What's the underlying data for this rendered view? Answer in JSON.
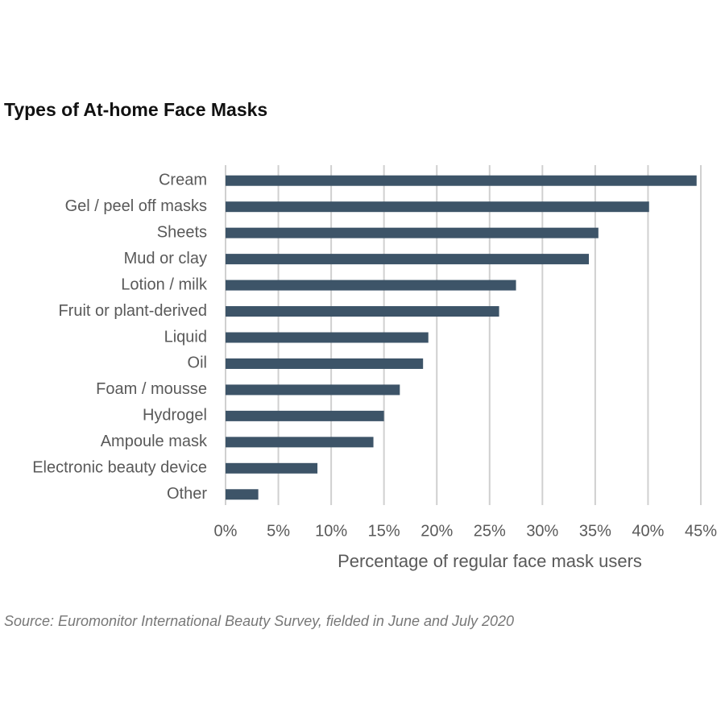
{
  "chart_data": {
    "type": "bar",
    "orientation": "horizontal",
    "title": "Types of At-home Face Masks",
    "xlabel": "Percentage of regular face mask users",
    "source": "Source: Euromonitor International Beauty Survey, fielded in June and July 2020",
    "categories": [
      "Cream",
      "Gel / peel off masks",
      "Sheets",
      "Mud or clay",
      "Lotion / milk",
      "Fruit or plant-derived",
      "Liquid",
      "Oil",
      "Foam / mousse",
      "Hydrogel",
      "Ampoule mask",
      "Electronic beauty device",
      "Other"
    ],
    "values": [
      44.6,
      40.1,
      35.3,
      34.4,
      27.5,
      25.9,
      19.2,
      18.7,
      16.5,
      15.0,
      14.0,
      8.7,
      3.1
    ],
    "color": "#3d5468",
    "xlim": [
      0,
      45
    ],
    "xticks": [
      {
        "value": 0,
        "label": "0%"
      },
      {
        "value": 5,
        "label": "5%"
      },
      {
        "value": 10,
        "label": "10%"
      },
      {
        "value": 15,
        "label": "15%"
      },
      {
        "value": 20,
        "label": "20%"
      },
      {
        "value": 25,
        "label": "25%"
      },
      {
        "value": 30,
        "label": "30%"
      },
      {
        "value": 35,
        "label": "35%"
      },
      {
        "value": 40,
        "label": "40%"
      },
      {
        "value": 45,
        "label": "45%"
      }
    ],
    "grid": true
  }
}
